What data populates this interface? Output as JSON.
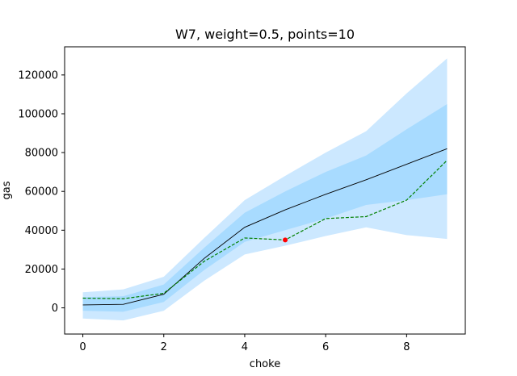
{
  "chart_data": {
    "type": "line",
    "title": "W7, weight=0.5, points=10",
    "xlabel": "choke",
    "ylabel": "gas",
    "xlim": [
      -0.45,
      9.45
    ],
    "ylim": [
      -13500,
      134500
    ],
    "xticks": [
      0,
      2,
      4,
      6,
      8
    ],
    "yticks": [
      0,
      20000,
      40000,
      60000,
      80000,
      100000,
      120000
    ],
    "x": [
      0,
      1,
      2,
      3,
      4,
      5,
      6,
      7,
      8,
      9
    ],
    "series": [
      {
        "role": "outer-band",
        "color": "#cce8ff",
        "upper": [
          8000,
          9500,
          16000,
          36000,
          55500,
          68000,
          80000,
          91000,
          110500,
          128500
        ],
        "lower": [
          -5500,
          -6500,
          -1500,
          14000,
          27500,
          32000,
          37000,
          41500,
          37500,
          35500
        ]
      },
      {
        "role": "inner-band",
        "color": "#a8dbff",
        "upper": [
          5500,
          6000,
          12000,
          31000,
          49000,
          60000,
          70000,
          78500,
          92000,
          105000
        ],
        "lower": [
          -1500,
          -2000,
          3000,
          19500,
          34000,
          40000,
          46000,
          53000,
          55500,
          58500
        ]
      },
      {
        "role": "mean-line",
        "color": "#000000",
        "values": [
          1500,
          1800,
          7000,
          25500,
          41500,
          50500,
          58500,
          66000,
          74000,
          82000
        ]
      },
      {
        "role": "observed-dashed",
        "color": "#008000",
        "values": [
          5000,
          4700,
          7500,
          24000,
          36000,
          35000,
          46000,
          47000,
          55500,
          76000
        ]
      }
    ],
    "highlight_point": {
      "x": 5,
      "y": 35000,
      "color": "#ff0000"
    },
    "grid": false
  }
}
